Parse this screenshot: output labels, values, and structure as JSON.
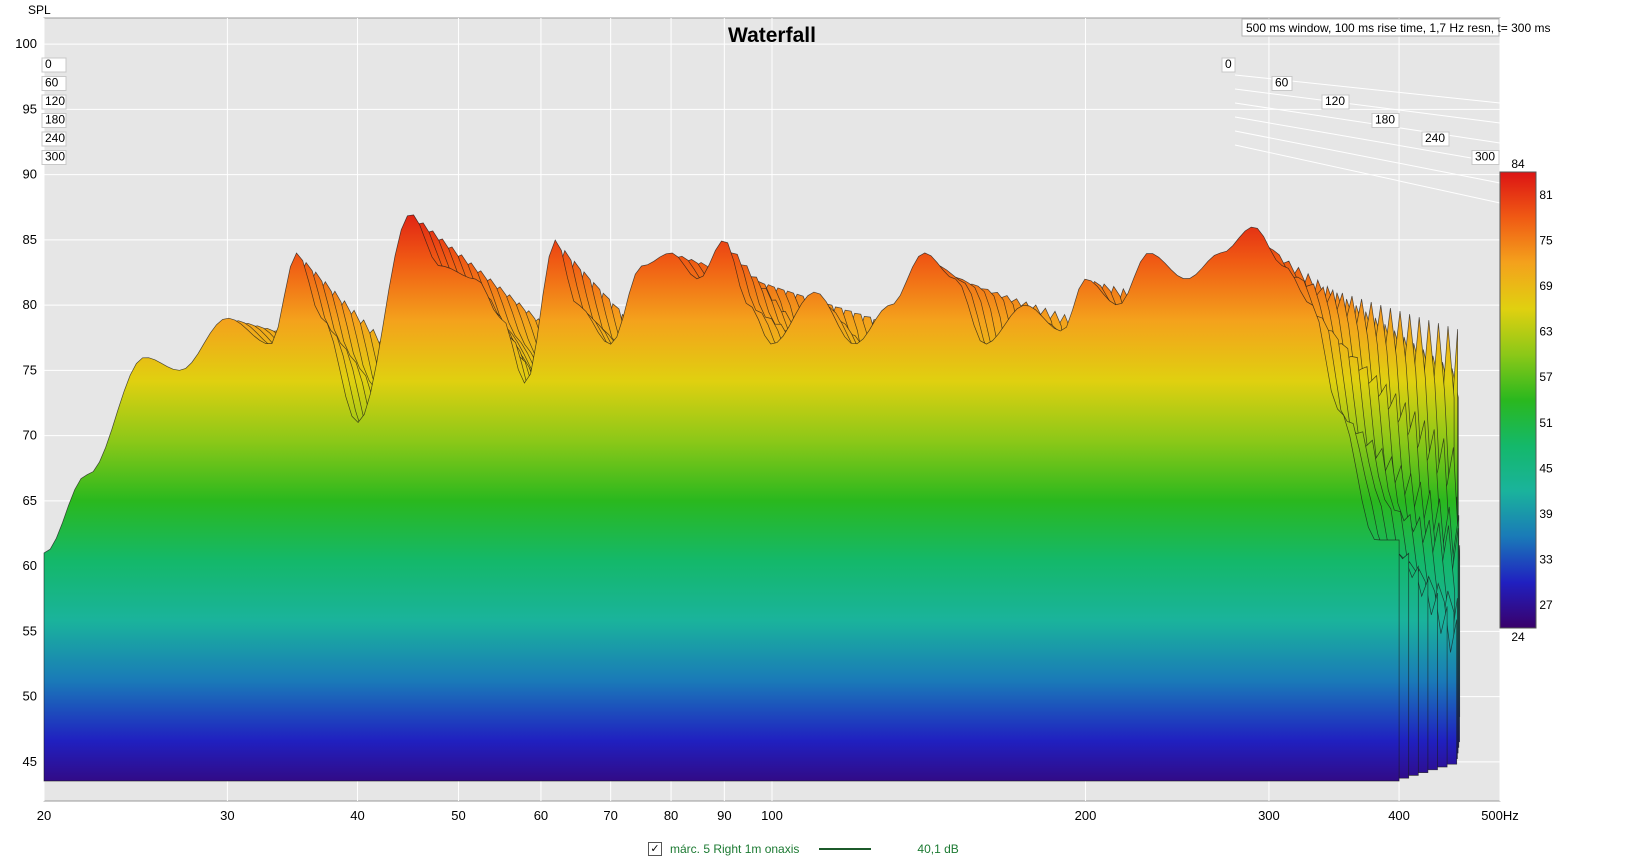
{
  "window_info": "500 ms window, 100 ms rise time,  1,7 Hz resn, t= 300 ms",
  "legend": {
    "checked": "✓",
    "label": "márc. 5 Right 1m onaxis",
    "value": "40,1 dB",
    "line_color": "#1c5a2a"
  },
  "colors": {
    "background": "#e6e6e6",
    "grid": "#ffffff",
    "text": "#000000"
  },
  "chart_data": {
    "type": "waterfall",
    "title": "Waterfall",
    "ylabel": "SPL",
    "xlabel": "",
    "x_scale": "log",
    "xlim": [
      20,
      500
    ],
    "ylim": [
      42,
      102
    ],
    "x_ticks": [
      "20",
      "30",
      "40",
      "50",
      "60",
      "70",
      "80",
      "90",
      "100",
      "200",
      "300",
      "400",
      "500Hz"
    ],
    "x_tick_values": [
      20,
      30,
      40,
      50,
      60,
      70,
      80,
      90,
      100,
      200,
      300,
      400,
      500
    ],
    "y_ticks": [
      45,
      50,
      55,
      60,
      65,
      70,
      75,
      80,
      85,
      90,
      95,
      100
    ],
    "time_ticks_ms": [
      "0",
      "60",
      "120",
      "180",
      "240",
      "300"
    ],
    "colorbar": {
      "min": 24,
      "max": 84,
      "ticks": [
        84,
        81,
        75,
        69,
        63,
        57,
        51,
        45,
        39,
        33,
        27,
        24
      ],
      "colors": [
        "#3a006a",
        "#2020c0",
        "#1a7ab8",
        "#1ab39c",
        "#14b86a",
        "#2ab81e",
        "#8cc818",
        "#e0d010",
        "#f4a21c",
        "#f05a14",
        "#dc1414"
      ]
    },
    "peaks_first_slice": {
      "freq": [
        20,
        22,
        25,
        27,
        30,
        33,
        35,
        37,
        40,
        45,
        48,
        52,
        55,
        58,
        62,
        65,
        70,
        75,
        80,
        85,
        90,
        95,
        100,
        110,
        120,
        130,
        140,
        150,
        160,
        175,
        190,
        200,
        215,
        230,
        250,
        270,
        290,
        310,
        330,
        350,
        380
      ],
      "spl": [
        61,
        67,
        76,
        75,
        79,
        77,
        84,
        79,
        71,
        87,
        83,
        82,
        79,
        74,
        85,
        80,
        77,
        83,
        84,
        82,
        85,
        80,
        77,
        81,
        77,
        80,
        84,
        82,
        77,
        80,
        78,
        82,
        80,
        84,
        82,
        84,
        86,
        83,
        80,
        72,
        62
      ]
    }
  }
}
